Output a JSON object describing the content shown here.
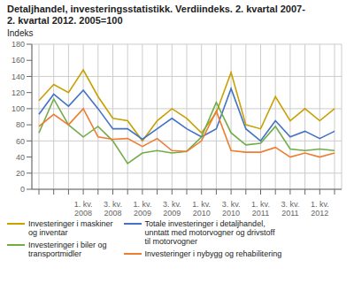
{
  "chart_data": {
    "type": "line",
    "title": "Detaljhandel, investeringsstatistikk. Verdiindeks. 2. kvartal 2007-\n2. kvartal 2012. 2005=100",
    "y_label": "Indeks",
    "categories": [
      null,
      null,
      null,
      "1. kv.\n2008",
      null,
      "3. kv.\n2008",
      null,
      "1. kv.\n2009",
      null,
      "3. kv.\n2009",
      null,
      "1. kv.\n2010",
      null,
      "3. kv.\n2010",
      null,
      "1. kv.\n2011",
      null,
      "3. kv.\n2011",
      null,
      "1. kv.\n2012",
      null
    ],
    "series": [
      {
        "name": "Investeringer i maskiner\nog inventar",
        "color": "#c8a000",
        "values": [
          110,
          130,
          120,
          148,
          115,
          88,
          85,
          60,
          85,
          100,
          88,
          70,
          95,
          145,
          80,
          75,
          115,
          85,
          100,
          85,
          100
        ]
      },
      {
        "name": "Totale investeringer i detaljhandel,\nunntatt med motorvogner og drivstoff\ntil motorvogner",
        "color": "#4472c4",
        "values": [
          93,
          118,
          103,
          123,
          100,
          75,
          75,
          62,
          75,
          88,
          75,
          65,
          75,
          125,
          75,
          60,
          85,
          65,
          72,
          63,
          72
        ]
      },
      {
        "name": "Investeringer i biler og\ntransportmidler",
        "color": "#70ad47",
        "values": [
          70,
          112,
          80,
          65,
          78,
          60,
          32,
          45,
          48,
          45,
          47,
          65,
          108,
          70,
          55,
          57,
          78,
          50,
          48,
          50,
          48
        ]
      },
      {
        "name": "Investeringer i nybygg og rehabilitering",
        "color": "#ed7d31",
        "values": [
          78,
          93,
          80,
          100,
          65,
          62,
          63,
          53,
          63,
          48,
          47,
          60,
          97,
          48,
          46,
          46,
          52,
          40,
          45,
          40,
          45
        ]
      }
    ],
    "ylim": [
      0,
      180
    ],
    "yticks": [
      0,
      20,
      40,
      60,
      80,
      100,
      120,
      140,
      160,
      180
    ],
    "grid": true,
    "legend": "lower left"
  }
}
